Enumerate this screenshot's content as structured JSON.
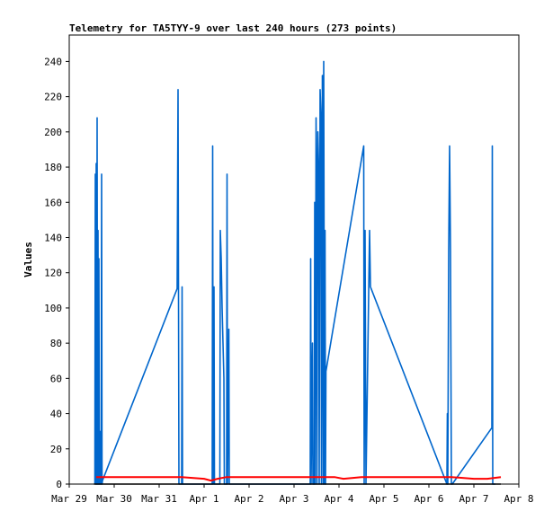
{
  "chart_data": {
    "type": "line",
    "title": "Telemetry for TA5TYY-9 over last 240 hours (273 points)",
    "ylabel": "Values",
    "xlabel": "",
    "ylim": [
      0,
      255
    ],
    "yticks": [
      0,
      20,
      40,
      60,
      80,
      100,
      120,
      140,
      160,
      180,
      200,
      220,
      240
    ],
    "xlim_days": [
      0,
      10
    ],
    "xticks": [
      {
        "day": 0,
        "label": "Mar 29"
      },
      {
        "day": 1,
        "label": "Mar 30"
      },
      {
        "day": 2,
        "label": "Mar 31"
      },
      {
        "day": 3,
        "label": "Apr 1"
      },
      {
        "day": 4,
        "label": "Apr 2"
      },
      {
        "day": 5,
        "label": "Apr 3"
      },
      {
        "day": 6,
        "label": "Apr 4"
      },
      {
        "day": 7,
        "label": "Apr 5"
      },
      {
        "day": 8,
        "label": "Apr 6"
      },
      {
        "day": 9,
        "label": "Apr 7"
      },
      {
        "day": 10,
        "label": "Apr 8"
      }
    ],
    "grid": false,
    "colors": {
      "blue": "#0066cc",
      "red": "#ff0000",
      "black": "#000000"
    },
    "series": [
      {
        "color": "#0066cc",
        "points": [
          [
            0.57,
            0
          ],
          [
            0.58,
            176
          ],
          [
            0.59,
            0
          ],
          [
            0.6,
            182
          ],
          [
            0.61,
            0
          ],
          [
            0.62,
            208
          ],
          [
            0.63,
            0
          ],
          [
            0.64,
            144
          ],
          [
            0.65,
            0
          ],
          [
            0.66,
            128
          ],
          [
            0.67,
            0
          ],
          [
            0.68,
            30
          ],
          [
            0.69,
            0
          ],
          [
            0.7,
            20
          ],
          [
            0.71,
            0
          ],
          [
            0.72,
            176
          ],
          [
            0.73,
            0
          ],
          [
            0.74,
            2
          ],
          [
            2.4,
            111
          ],
          [
            2.42,
            224
          ],
          [
            2.44,
            0
          ],
          [
            2.5,
            0
          ],
          [
            2.51,
            112
          ],
          [
            2.52,
            0
          ],
          [
            3.18,
            0
          ],
          [
            3.19,
            192
          ],
          [
            3.2,
            0
          ],
          [
            3.22,
            112
          ],
          [
            3.23,
            0
          ],
          [
            3.35,
            0
          ],
          [
            3.36,
            144
          ],
          [
            3.38,
            128
          ],
          [
            3.4,
            100
          ],
          [
            3.42,
            80
          ],
          [
            3.44,
            60
          ],
          [
            3.45,
            0
          ],
          [
            3.5,
            0
          ],
          [
            3.51,
            176
          ],
          [
            3.52,
            0
          ],
          [
            3.55,
            88
          ],
          [
            3.56,
            0
          ],
          [
            5.36,
            0
          ],
          [
            5.37,
            128
          ],
          [
            5.38,
            0
          ],
          [
            5.4,
            60
          ],
          [
            5.41,
            80
          ],
          [
            5.42,
            0
          ],
          [
            5.45,
            0
          ],
          [
            5.46,
            160
          ],
          [
            5.47,
            0
          ],
          [
            5.49,
            208
          ],
          [
            5.5,
            176
          ],
          [
            5.51,
            0
          ],
          [
            5.53,
            200
          ],
          [
            5.55,
            176
          ],
          [
            5.56,
            0
          ],
          [
            5.58,
            224
          ],
          [
            5.6,
            208
          ],
          [
            5.61,
            0
          ],
          [
            5.63,
            232
          ],
          [
            5.65,
            0
          ],
          [
            5.66,
            240
          ],
          [
            5.68,
            0
          ],
          [
            5.69,
            144
          ],
          [
            5.7,
            0
          ],
          [
            5.71,
            64
          ],
          [
            6.55,
            192
          ],
          [
            6.56,
            0
          ],
          [
            6.58,
            144
          ],
          [
            6.6,
            0
          ],
          [
            6.68,
            144
          ],
          [
            6.7,
            112
          ],
          [
            8.4,
            0
          ],
          [
            8.41,
            40
          ],
          [
            8.42,
            0
          ],
          [
            8.44,
            133
          ],
          [
            8.46,
            192
          ],
          [
            8.48,
            133
          ],
          [
            8.5,
            0
          ],
          [
            8.52,
            0
          ],
          [
            9.4,
            32
          ],
          [
            9.41,
            192
          ],
          [
            9.42,
            0
          ],
          [
            9.48,
            0
          ]
        ]
      },
      {
        "color": "#ff0000",
        "points": [
          [
            0.6,
            4
          ],
          [
            1.0,
            4
          ],
          [
            1.5,
            4
          ],
          [
            2.0,
            4
          ],
          [
            2.5,
            4
          ],
          [
            3.0,
            3
          ],
          [
            3.15,
            2
          ],
          [
            3.3,
            3
          ],
          [
            3.5,
            4
          ],
          [
            4.0,
            4
          ],
          [
            4.5,
            4
          ],
          [
            5.0,
            4
          ],
          [
            5.5,
            4
          ],
          [
            5.9,
            4
          ],
          [
            6.1,
            3
          ],
          [
            6.5,
            4
          ],
          [
            7.0,
            4
          ],
          [
            7.5,
            4
          ],
          [
            8.0,
            4
          ],
          [
            8.5,
            4
          ],
          [
            9.0,
            3
          ],
          [
            9.3,
            3
          ],
          [
            9.6,
            4
          ]
        ]
      },
      {
        "color": "#000000",
        "points": [
          [
            0.55,
            0
          ],
          [
            9.6,
            0
          ]
        ]
      }
    ]
  }
}
